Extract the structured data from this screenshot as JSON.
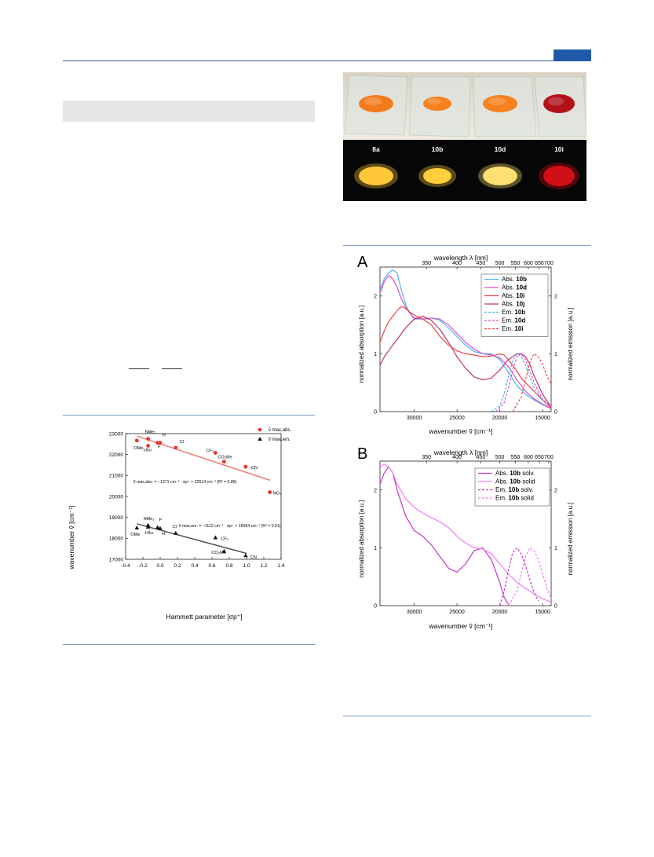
{
  "photo": {
    "labels": [
      "8a",
      "10b",
      "10d",
      "10i"
    ],
    "powder_colors_daylight": [
      "#f47a1e",
      "#f4801f",
      "#f5821e",
      "#b3111a"
    ],
    "powder_colors_uv": [
      "#ffc83a",
      "#ffcf3c",
      "#ffe070",
      "#d10f16"
    ]
  },
  "hammett": {
    "ylabel": "wavenumber ṽ [cm⁻¹]",
    "xlabel": "Hammett parameter [σp⁺]",
    "legend_abs": "ṽ max,abs.",
    "legend_em": "ṽ max,em.",
    "eq_abs": "ṽ max,abs. = −1371 cm⁻¹ · σp⁺ + 22514 cm⁻¹ (R² = 0.86)",
    "eq_em": "ṽ max,em. = −1112 cm⁻¹ · σp⁺ + 18394 cm⁻¹ (R² = 0.91)"
  },
  "spectra": {
    "panel_a_letter": "A",
    "panel_b_letter": "B",
    "top_axis_title": "wavelength λ [nm]",
    "bottom_axis_title": "wavenumber ṽ [cm⁻¹]",
    "left_axis_title": "normalized absorption [a.u.]",
    "right_axis_title": "normalized emission [a.u.]",
    "legend_a": [
      {
        "prefix": "Abs.",
        "bold": "10b",
        "suffix": "",
        "color": "#4fb3ea",
        "dash": false
      },
      {
        "prefix": "Abs.",
        "bold": "10d",
        "suffix": "",
        "color": "#d94fd0",
        "dash": false
      },
      {
        "prefix": "Abs.",
        "bold": "10i",
        "suffix": "",
        "color": "#ee4444",
        "dash": false
      },
      {
        "prefix": "Abs.",
        "bold": "10j",
        "suffix": "",
        "color": "#c2326e",
        "dash": false
      },
      {
        "prefix": "Em.",
        "bold": "10b",
        "suffix": "",
        "color": "#4fb3ea",
        "dash": true
      },
      {
        "prefix": "Em.",
        "bold": "10d",
        "suffix": "",
        "color": "#d94fd0",
        "dash": true
      },
      {
        "prefix": "Em.",
        "bold": "10i",
        "suffix": "",
        "color": "#ee4444",
        "dash": true
      }
    ],
    "legend_b": [
      {
        "prefix": "Abs.",
        "bold": "10b",
        "suffix": " solv.",
        "color": "#c936c9",
        "dash": false
      },
      {
        "prefix": "Abs.",
        "bold": "10b",
        "suffix": " solid",
        "color": "#f57af0",
        "dash": false
      },
      {
        "prefix": "Em.",
        "bold": "10b",
        "suffix": " solv.",
        "color": "#c936c9",
        "dash": true
      },
      {
        "prefix": "Em.",
        "bold": "10b",
        "suffix": " solid",
        "color": "#f57af0",
        "dash": true
      }
    ]
  },
  "chart_data": [
    {
      "type": "scatter",
      "title": "",
      "xlabel": "Hammett parameter [σp⁺]",
      "ylabel": "wavenumber ṽ [cm⁻¹]",
      "xlim": [
        -0.4,
        1.4
      ],
      "ylim": [
        17000,
        23000
      ],
      "xticks": [
        -0.4,
        -0.2,
        0.0,
        0.2,
        0.4,
        0.6,
        0.8,
        1.0,
        1.2,
        1.4
      ],
      "yticks": [
        17000,
        18000,
        19000,
        20000,
        21000,
        22000,
        23000
      ],
      "series": [
        {
          "name": "ṽ max,abs.",
          "marker": "circle",
          "color": "#e8302a",
          "points": [
            {
              "label": "OMe",
              "x": -0.27,
              "y": 22670
            },
            {
              "label": "NMe₂",
              "x": -0.14,
              "y": 22750
            },
            {
              "label": "t-Bu",
              "x": -0.14,
              "y": 22420
            },
            {
              "label": "H",
              "x": -0.03,
              "y": 22560
            },
            {
              "label": "F",
              "x": 0.0,
              "y": 22560
            },
            {
              "label": "Cl",
              "x": 0.18,
              "y": 22330
            },
            {
              "label": "CF₃",
              "x": 0.64,
              "y": 22080
            },
            {
              "label": "CO₂Me",
              "x": 0.74,
              "y": 21660
            },
            {
              "label": "CN",
              "x": 0.99,
              "y": 21420
            },
            {
              "label": "NO₂",
              "x": 1.27,
              "y": 20200
            }
          ],
          "fit": {
            "slope": -1371,
            "intercept": 22514,
            "x_range": [
              -0.27,
              1.27
            ],
            "color": "#f07b72"
          }
        },
        {
          "name": "ṽ max,em.",
          "marker": "triangle",
          "color": "#111111",
          "points": [
            {
              "label": "OMe",
              "x": -0.27,
              "y": 18500
            },
            {
              "label": "NMe₂",
              "x": -0.14,
              "y": 18620
            },
            {
              "label": "t-Bu",
              "x": -0.14,
              "y": 18540
            },
            {
              "label": "F",
              "x": -0.03,
              "y": 18520
            },
            {
              "label": "H",
              "x": 0.0,
              "y": 18470
            },
            {
              "label": "Cl",
              "x": 0.18,
              "y": 18240
            },
            {
              "label": "CF₃",
              "x": 0.64,
              "y": 18030
            },
            {
              "label": "CO₂Me",
              "x": 0.74,
              "y": 17380
            },
            {
              "label": "CN",
              "x": 0.99,
              "y": 17180
            }
          ],
          "fit": {
            "slope": -1112,
            "intercept": 18394,
            "x_range": [
              -0.27,
              1.0
            ],
            "color": "#555555"
          }
        }
      ]
    },
    {
      "type": "line",
      "panel": "A",
      "xlabel": "wavenumber ṽ [cm⁻¹]",
      "x_top_label": "wavelength λ [nm]",
      "ylabel": "normalized absorption [a.u.]",
      "ylabel_right": "normalized emission [a.u.]",
      "xlim": [
        34000,
        14000
      ],
      "ylim": [
        0,
        2.5
      ],
      "xticks": [
        30000,
        25000,
        20000,
        15000
      ],
      "yticks": [
        0,
        1,
        2
      ],
      "x_top_ticks": [
        350,
        400,
        450,
        500,
        550,
        600,
        650,
        700
      ],
      "series": [
        {
          "name": "Abs. 10b",
          "color": "#4fb3ea",
          "dash": false,
          "x": [
            34000,
            33500,
            33000,
            32500,
            32000,
            31500,
            31000,
            30500,
            30000,
            29000,
            28000,
            27000,
            26000,
            25000,
            24000,
            23000,
            22000,
            21000,
            20000,
            19000,
            18000,
            17000,
            16000,
            15000,
            14000
          ],
          "y": [
            2.1,
            2.3,
            2.4,
            2.45,
            2.4,
            2.1,
            1.85,
            1.7,
            1.6,
            1.6,
            1.62,
            1.58,
            1.45,
            1.3,
            1.15,
            1.04,
            1.0,
            1.0,
            0.9,
            0.68,
            0.45,
            0.3,
            0.2,
            0.12,
            0.05
          ]
        },
        {
          "name": "Abs. 10d",
          "color": "#d94fd0",
          "dash": false,
          "x": [
            34000,
            33500,
            33000,
            32500,
            32000,
            31500,
            31000,
            30500,
            30000,
            29000,
            28000,
            27000,
            26000,
            25000,
            24000,
            23000,
            22000,
            21000,
            20000,
            19000,
            18000,
            17000,
            16000,
            15000,
            14000
          ],
          "y": [
            2.05,
            2.25,
            2.35,
            2.3,
            2.15,
            1.95,
            1.8,
            1.7,
            1.62,
            1.6,
            1.62,
            1.6,
            1.5,
            1.35,
            1.2,
            1.08,
            1.0,
            0.98,
            0.93,
            0.78,
            0.55,
            0.35,
            0.22,
            0.13,
            0.05
          ]
        },
        {
          "name": "Abs. 10i",
          "color": "#ee4444",
          "dash": false,
          "x": [
            34000,
            33500,
            33000,
            32500,
            32000,
            31500,
            31000,
            30500,
            30000,
            29000,
            28000,
            27000,
            26000,
            25000,
            24000,
            23000,
            22000,
            21000,
            20000,
            19500,
            19000,
            18500,
            18000,
            17500,
            17000,
            16000,
            15000,
            14000
          ],
          "y": [
            1.2,
            1.4,
            1.55,
            1.65,
            1.75,
            1.82,
            1.78,
            1.72,
            1.67,
            1.6,
            1.5,
            1.3,
            1.15,
            1.05,
            1.0,
            0.98,
            0.95,
            0.96,
            1.0,
            0.98,
            0.9,
            0.8,
            0.7,
            0.58,
            0.5,
            0.35,
            0.2,
            0.06
          ]
        },
        {
          "name": "Abs. 10j",
          "color": "#c2326e",
          "dash": false,
          "x": [
            34000,
            33500,
            33000,
            32500,
            32000,
            31500,
            31000,
            30000,
            29000,
            28000,
            27000,
            26000,
            25000,
            24000,
            23000,
            22000,
            21000,
            20000,
            19000,
            18000,
            17500,
            17000,
            16500,
            16000,
            15000,
            14000
          ],
          "y": [
            0.8,
            0.95,
            1.05,
            1.15,
            1.25,
            1.35,
            1.45,
            1.6,
            1.65,
            1.58,
            1.42,
            1.2,
            0.95,
            0.75,
            0.6,
            0.55,
            0.58,
            0.72,
            0.9,
            1.0,
            1.0,
            0.95,
            0.82,
            0.62,
            0.3,
            0.08
          ]
        },
        {
          "name": "Em. 10b",
          "color": "#4fb3ea",
          "dash": true,
          "x": [
            21000,
            20000,
            19500,
            19000,
            18500,
            18000,
            17500,
            17000,
            16500,
            16000,
            15000,
            14000
          ],
          "y": [
            0.0,
            0.1,
            0.3,
            0.6,
            0.88,
            1.0,
            0.95,
            0.8,
            0.6,
            0.42,
            0.2,
            0.08
          ]
        },
        {
          "name": "Em. 10d",
          "color": "#d94fd0",
          "dash": true,
          "x": [
            20500,
            19500,
            19000,
            18500,
            18000,
            17500,
            17000,
            16500,
            16000,
            15000,
            14000
          ],
          "y": [
            0.0,
            0.15,
            0.4,
            0.72,
            0.95,
            1.0,
            0.9,
            0.7,
            0.5,
            0.22,
            0.08
          ]
        },
        {
          "name": "Em. 10i",
          "color": "#ee4444",
          "dash": true,
          "x": [
            18500,
            17500,
            17000,
            16500,
            16000,
            15500,
            15000,
            14500,
            14000
          ],
          "y": [
            0.0,
            0.25,
            0.55,
            0.85,
            1.0,
            0.95,
            0.82,
            0.62,
            0.48
          ]
        }
      ]
    },
    {
      "type": "line",
      "panel": "B",
      "xlabel": "wavenumber ṽ [cm⁻¹]",
      "x_top_label": "wavelength λ [nm]",
      "ylabel": "normalized absorption [a.u.]",
      "ylabel_right": "normalized emission [a.u.]",
      "xlim": [
        34000,
        14000
      ],
      "ylim": [
        0,
        2.5
      ],
      "xticks": [
        30000,
        25000,
        20000,
        15000
      ],
      "yticks": [
        0,
        1,
        2
      ],
      "x_top_ticks": [
        350,
        400,
        450,
        500,
        550,
        600,
        650,
        700
      ],
      "series": [
        {
          "name": "Abs. 10b solv.",
          "color": "#c936c9",
          "dash": false,
          "x": [
            34000,
            33500,
            33000,
            32500,
            32000,
            31000,
            30000,
            29000,
            28000,
            27000,
            26000,
            25000,
            24000,
            23000,
            22000,
            21000,
            20000,
            19500,
            19000
          ],
          "y": [
            2.1,
            2.3,
            2.4,
            2.3,
            2.0,
            1.55,
            1.3,
            1.2,
            1.05,
            0.85,
            0.65,
            0.58,
            0.72,
            0.95,
            1.0,
            0.8,
            0.4,
            0.15,
            0.02
          ]
        },
        {
          "name": "Abs. 10b solid",
          "color": "#f57af0",
          "dash": false,
          "x": [
            34000,
            33500,
            33000,
            32500,
            32000,
            31000,
            30000,
            29000,
            28000,
            27000,
            26000,
            25000,
            24000,
            23000,
            22000,
            21000,
            20000,
            19000,
            18000,
            17000,
            16000,
            15000,
            14000
          ],
          "y": [
            2.4,
            2.45,
            2.4,
            2.3,
            2.1,
            1.85,
            1.7,
            1.6,
            1.52,
            1.45,
            1.35,
            1.2,
            1.08,
            1.0,
            0.98,
            0.9,
            0.72,
            0.55,
            0.4,
            0.3,
            0.2,
            0.12,
            0.06
          ]
        },
        {
          "name": "Em. 10b solv.",
          "color": "#c936c9",
          "dash": true,
          "x": [
            20000,
            19500,
            19000,
            18500,
            18000,
            17500,
            17000,
            16500,
            16000,
            15500
          ],
          "y": [
            0.0,
            0.25,
            0.6,
            0.92,
            1.0,
            0.9,
            0.7,
            0.45,
            0.22,
            0.08
          ]
        },
        {
          "name": "Em. 10b solid",
          "color": "#f57af0",
          "dash": true,
          "x": [
            19000,
            18000,
            17500,
            17000,
            16500,
            16000,
            15500,
            15000,
            14500,
            14000
          ],
          "y": [
            0.0,
            0.25,
            0.55,
            0.85,
            1.0,
            0.95,
            0.8,
            0.55,
            0.3,
            0.12
          ]
        }
      ]
    }
  ]
}
